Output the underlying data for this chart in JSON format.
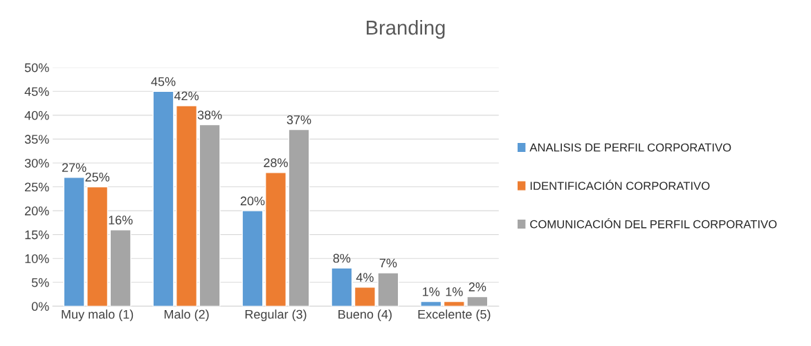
{
  "chart_data": {
    "type": "bar",
    "title": "Branding",
    "categories": [
      "Muy malo (1)",
      "Malo (2)",
      "Regular (3)",
      "Bueno (4)",
      "Excelente (5)"
    ],
    "series": [
      {
        "name": "ANALISIS DE PERFIL CORPORATIVO",
        "color": "#5b9bd5",
        "values": [
          27,
          45,
          20,
          8,
          1
        ],
        "value_labels": [
          "27%",
          "45%",
          "20%",
          "8%",
          "1%"
        ]
      },
      {
        "name": "IDENTIFICACIÓN CORPORATIVO",
        "color": "#ed7d31",
        "values": [
          25,
          42,
          28,
          4,
          1
        ],
        "value_labels": [
          "25%",
          "42%",
          "28%",
          "4%",
          "1%"
        ]
      },
      {
        "name": "COMUNICACIÓN DEL PERFIL CORPORATIVO",
        "color": "#a5a5a5",
        "values": [
          16,
          38,
          37,
          7,
          2
        ],
        "value_labels": [
          "16%",
          "38%",
          "37%",
          "7%",
          "2%"
        ]
      }
    ],
    "ylim": [
      0,
      50
    ],
    "yticks": [
      {
        "value": 0,
        "label": "0%"
      },
      {
        "value": 5,
        "label": "5%"
      },
      {
        "value": 10,
        "label": "10%"
      },
      {
        "value": 15,
        "label": "15%"
      },
      {
        "value": 20,
        "label": "20%"
      },
      {
        "value": 25,
        "label": "25%"
      },
      {
        "value": 30,
        "label": "30%"
      },
      {
        "value": 35,
        "label": "35%"
      },
      {
        "value": 40,
        "label": "40%"
      },
      {
        "value": 45,
        "label": "45%"
      },
      {
        "value": 50,
        "label": "50%"
      }
    ],
    "grid": "y",
    "legend": "right"
  }
}
